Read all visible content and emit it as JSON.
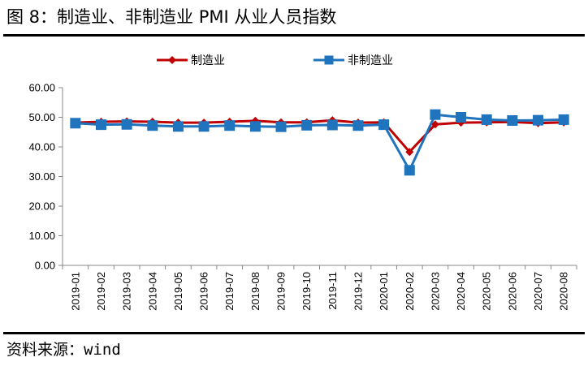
{
  "figure": {
    "title": "图 8：制造业、非制造业 PMI 从业人员指数",
    "source": "资料来源：wind"
  },
  "chart_data": {
    "type": "line",
    "x": [
      "2019-01",
      "2019-02",
      "2019-03",
      "2019-04",
      "2019-05",
      "2019-06",
      "2019-07",
      "2019-08",
      "2019-09",
      "2019-10",
      "2019-11",
      "2019-12",
      "2020-01",
      "2020-02",
      "2020-03",
      "2020-04",
      "2020-05",
      "2020-06",
      "2020-07",
      "2020-08"
    ],
    "y_ticks": [
      "0.00",
      "10.00",
      "20.00",
      "30.00",
      "40.00",
      "50.00",
      "60.00"
    ],
    "ylim": [
      0,
      60
    ],
    "grid": false,
    "legend_position": "top",
    "series": [
      {
        "name": "制造业",
        "color": "#C00000",
        "marker": "diamond",
        "values": [
          48.2,
          48.5,
          48.6,
          48.5,
          48.2,
          48.2,
          48.5,
          48.8,
          48.3,
          48.3,
          49.0,
          48.2,
          48.3,
          38.3,
          47.6,
          48.2,
          48.3,
          48.4,
          48.0,
          48.3
        ]
      },
      {
        "name": "非制造业",
        "color": "#1F74BD",
        "marker": "square",
        "values": [
          48.0,
          47.5,
          47.6,
          47.2,
          46.9,
          46.9,
          47.2,
          46.9,
          46.8,
          47.3,
          47.4,
          47.2,
          47.5,
          32.1,
          50.9,
          50.0,
          49.2,
          48.9,
          49.0,
          49.2
        ]
      }
    ]
  }
}
